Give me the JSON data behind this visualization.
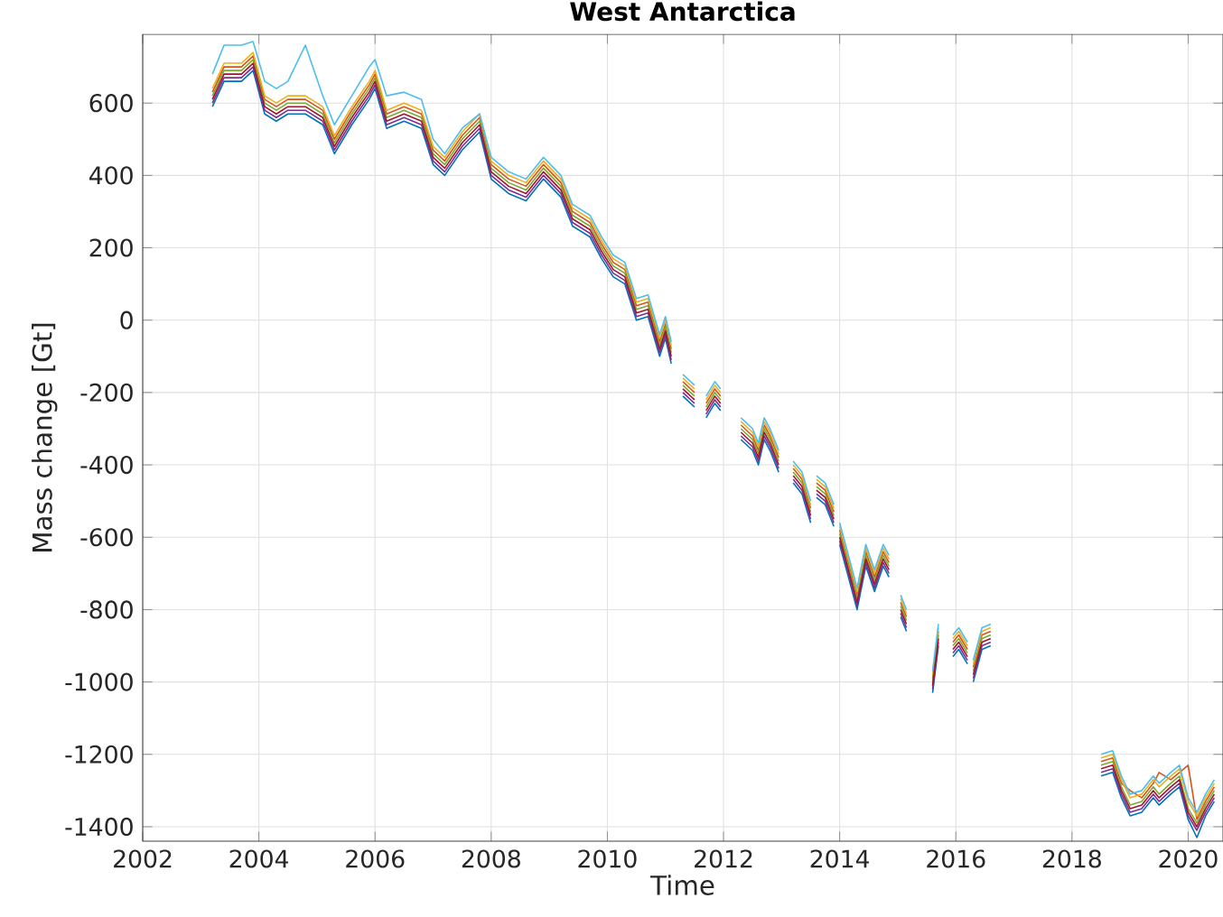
{
  "chart_data": {
    "type": "line",
    "title": "West Antarctica",
    "xlabel": "Time",
    "ylabel": "Mass change [Gt]",
    "xlim": [
      2002,
      2020.6
    ],
    "ylim": [
      -1440,
      790
    ],
    "xticks": [
      2002,
      2004,
      2006,
      2008,
      2010,
      2012,
      2014,
      2016,
      2018,
      2020
    ],
    "yticks": [
      -1400,
      -1200,
      -1000,
      -800,
      -600,
      -400,
      -200,
      0,
      200,
      400,
      600
    ],
    "grid": true,
    "line_style": "solid",
    "x": [
      2003.2,
      2003.4,
      2003.7,
      2003.9,
      2004.1,
      2004.3,
      2004.5,
      2004.8,
      2005.1,
      2005.3,
      2005.6,
      2005.9,
      2006.0,
      2006.2,
      2006.5,
      2006.8,
      2007.0,
      2007.2,
      2007.5,
      2007.8,
      2008.0,
      2008.3,
      2008.6,
      2008.9,
      2009.2,
      2009.4,
      2009.7,
      2009.9,
      2010.1,
      2010.3,
      2010.5,
      2010.7,
      2010.9,
      2011.0,
      2011.1,
      2011.2,
      2011.3,
      2011.5,
      2011.6,
      2011.7,
      2011.85,
      2011.95,
      2012.1,
      2012.3,
      2012.5,
      2012.6,
      2012.7,
      2012.8,
      2012.95,
      2013.1,
      2013.2,
      2013.35,
      2013.5,
      2013.55,
      2013.6,
      2013.75,
      2013.9,
      2013.95,
      2014.0,
      2014.15,
      2014.3,
      2014.45,
      2014.6,
      2014.75,
      2014.85,
      2014.95,
      2015.05,
      2015.15,
      2015.3,
      2015.6,
      2015.7,
      2015.8,
      2015.95,
      2016.05,
      2016.2,
      2016.25,
      2016.3,
      2016.45,
      2016.6,
      2017.5,
      2018.5,
      2018.7,
      2018.85,
      2019.0,
      2019.2,
      2019.4,
      2019.5,
      2019.7,
      2019.85,
      2020.0,
      2020.15,
      2020.3,
      2020.45
    ],
    "series": [
      {
        "color": "#0072bd",
        "values": [
          590,
          660,
          660,
          690,
          570,
          550,
          570,
          570,
          540,
          460,
          540,
          610,
          640,
          530,
          550,
          530,
          430,
          400,
          470,
          520,
          390,
          350,
          330,
          390,
          340,
          260,
          230,
          170,
          120,
          100,
          0,
          10,
          -100,
          -50,
          -120,
          null,
          -210,
          -240,
          null,
          -270,
          -230,
          -250,
          null,
          -330,
          -360,
          -400,
          -330,
          -360,
          -420,
          null,
          -450,
          -480,
          -560,
          null,
          -490,
          -510,
          -570,
          null,
          -620,
          -710,
          -800,
          -680,
          -750,
          -680,
          -710,
          null,
          -820,
          -860,
          null,
          -1030,
          -900,
          null,
          -930,
          -910,
          -950,
          null,
          -1000,
          -910,
          -900,
          null,
          -1260,
          -1250,
          -1320,
          -1370,
          -1360,
          -1320,
          -1340,
          -1310,
          -1290,
          -1380,
          -1430,
          -1370,
          -1330
        ]
      },
      {
        "color": "#d95319",
        "values": [
          630,
          700,
          700,
          730,
          610,
          590,
          610,
          610,
          580,
          500,
          580,
          650,
          680,
          570,
          590,
          570,
          470,
          440,
          510,
          560,
          430,
          390,
          370,
          430,
          380,
          300,
          270,
          210,
          160,
          140,
          40,
          50,
          -60,
          -10,
          -80,
          null,
          -170,
          -200,
          null,
          -230,
          -190,
          -210,
          null,
          -290,
          -320,
          -360,
          -290,
          -320,
          -380,
          null,
          -410,
          -440,
          -520,
          null,
          -450,
          -470,
          -530,
          null,
          -580,
          -670,
          -760,
          -640,
          -710,
          -640,
          -670,
          null,
          -780,
          -820,
          null,
          -990,
          -860,
          null,
          -890,
          -870,
          -910,
          null,
          -960,
          -870,
          -860,
          null,
          -1220,
          -1210,
          -1280,
          -1300,
          -1320,
          -1280,
          -1250,
          -1270,
          -1250,
          -1230,
          -1380,
          -1330,
          -1290
        ]
      },
      {
        "color": "#edb120",
        "values": [
          640,
          710,
          710,
          740,
          620,
          600,
          620,
          620,
          590,
          510,
          590,
          660,
          690,
          580,
          600,
          580,
          480,
          450,
          520,
          570,
          440,
          400,
          380,
          440,
          390,
          310,
          280,
          220,
          170,
          150,
          50,
          60,
          -50,
          0,
          -70,
          null,
          -160,
          -190,
          null,
          -220,
          -180,
          -200,
          null,
          -280,
          -310,
          -350,
          -280,
          -310,
          -370,
          null,
          -400,
          -430,
          -510,
          null,
          -440,
          -460,
          -520,
          null,
          -570,
          -660,
          -750,
          -630,
          -700,
          -630,
          -660,
          null,
          -770,
          -810,
          null,
          -980,
          -850,
          null,
          -880,
          -860,
          -900,
          null,
          -950,
          -860,
          -850,
          null,
          -1210,
          -1200,
          -1270,
          -1320,
          -1310,
          -1270,
          -1290,
          -1260,
          -1240,
          -1330,
          -1370,
          -1320,
          -1280
        ]
      },
      {
        "color": "#7e2f8e",
        "values": [
          600,
          670,
          670,
          700,
          580,
          560,
          580,
          580,
          550,
          470,
          550,
          620,
          650,
          540,
          560,
          540,
          440,
          410,
          480,
          530,
          400,
          360,
          340,
          400,
          350,
          270,
          240,
          180,
          130,
          110,
          10,
          20,
          -90,
          -40,
          -110,
          null,
          -200,
          -230,
          null,
          -260,
          -220,
          -240,
          null,
          -320,
          -350,
          -390,
          -320,
          -350,
          -410,
          null,
          -440,
          -470,
          -550,
          null,
          -480,
          -500,
          -560,
          null,
          -610,
          -700,
          -790,
          -670,
          -740,
          -670,
          -700,
          null,
          -810,
          -850,
          null,
          -1020,
          -890,
          null,
          -920,
          -900,
          -940,
          null,
          -990,
          -900,
          -890,
          null,
          -1250,
          -1240,
          -1310,
          -1360,
          -1350,
          -1310,
          -1330,
          -1300,
          -1280,
          -1370,
          -1410,
          -1360,
          -1320
        ]
      },
      {
        "color": "#77ac30",
        "values": [
          620,
          690,
          690,
          720,
          600,
          580,
          600,
          600,
          570,
          490,
          570,
          640,
          670,
          560,
          580,
          560,
          460,
          430,
          500,
          550,
          420,
          380,
          360,
          420,
          370,
          290,
          260,
          200,
          150,
          130,
          30,
          40,
          -70,
          -20,
          -90,
          null,
          -180,
          -210,
          null,
          -240,
          -200,
          -220,
          null,
          -300,
          -330,
          -370,
          -300,
          -330,
          -390,
          null,
          -420,
          -450,
          -530,
          null,
          -460,
          -480,
          -540,
          null,
          -590,
          -680,
          -770,
          -650,
          -720,
          -650,
          -680,
          null,
          -790,
          -830,
          null,
          -1000,
          -870,
          null,
          -900,
          -880,
          -920,
          null,
          -970,
          -880,
          -870,
          null,
          -1230,
          -1220,
          -1290,
          -1340,
          -1330,
          -1290,
          -1310,
          -1280,
          -1260,
          -1350,
          -1390,
          -1340,
          -1300
        ]
      },
      {
        "color": "#4dbeee",
        "values": [
          680,
          760,
          760,
          770,
          660,
          640,
          660,
          760,
          620,
          540,
          620,
          700,
          720,
          620,
          630,
          610,
          500,
          460,
          530,
          570,
          450,
          410,
          390,
          450,
          400,
          320,
          290,
          230,
          180,
          160,
          60,
          70,
          -40,
          10,
          -60,
          null,
          -150,
          -180,
          null,
          -210,
          -170,
          -190,
          null,
          -270,
          -300,
          -340,
          -270,
          -300,
          -360,
          null,
          -390,
          -420,
          -500,
          null,
          -430,
          -450,
          -510,
          null,
          -560,
          -650,
          -740,
          -620,
          -690,
          -620,
          -650,
          null,
          -760,
          -800,
          null,
          -970,
          -840,
          null,
          -870,
          -850,
          -890,
          null,
          -940,
          -850,
          -840,
          null,
          -1200,
          -1190,
          -1260,
          -1310,
          -1300,
          -1260,
          -1280,
          -1250,
          -1230,
          -1320,
          -1360,
          -1310,
          -1270
        ]
      },
      {
        "color": "#a2142f",
        "values": [
          610,
          680,
          680,
          710,
          590,
          570,
          590,
          590,
          560,
          480,
          560,
          630,
          660,
          550,
          570,
          550,
          450,
          420,
          490,
          540,
          410,
          370,
          350,
          410,
          360,
          280,
          250,
          190,
          140,
          120,
          20,
          30,
          -80,
          -30,
          -100,
          null,
          -190,
          -220,
          null,
          -250,
          -210,
          -230,
          null,
          -310,
          -340,
          -380,
          -310,
          -340,
          -400,
          null,
          -430,
          -460,
          -540,
          null,
          -470,
          -490,
          -550,
          null,
          -600,
          -690,
          -780,
          -660,
          -730,
          -660,
          -690,
          null,
          -800,
          -840,
          null,
          -1010,
          -880,
          null,
          -910,
          -890,
          -930,
          null,
          -980,
          -890,
          -880,
          null,
          -1240,
          -1230,
          -1300,
          -1350,
          -1340,
          -1300,
          -1320,
          -1290,
          -1270,
          -1360,
          -1400,
          -1350,
          -1310
        ]
      }
    ]
  }
}
